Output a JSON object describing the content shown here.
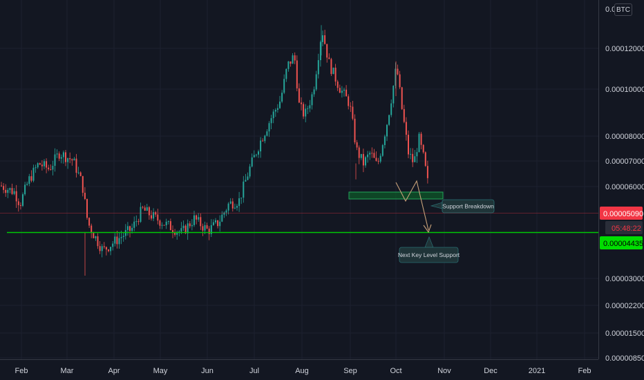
{
  "currency_badge": "BTC",
  "chart_data": {
    "type": "candlestick",
    "y_scale": "log",
    "ylim": [
      8.5e-06,
      0.000142
    ],
    "y_ticks": [
      "0.00012000",
      "0.00010000",
      "0.00008000",
      "0.00007000",
      "0.00006000",
      "0.00003000",
      "0.00002200",
      "0.00001500",
      "0.00000850"
    ],
    "x_ticks": [
      "Feb",
      "Mar",
      "Apr",
      "May",
      "Jun",
      "Jul",
      "Aug",
      "Sep",
      "Oct",
      "Nov",
      "Dec",
      "2021",
      "Feb"
    ],
    "top_partial_tick": "0.0",
    "series": [
      {
        "kind": "trend",
        "points": [
          [
            "Feb",
            5.15e-05,
            5.65e-05,
            4.8e-05,
            5.3e-05
          ],
          [
            "Mar",
            5.4e-05,
            6.4e-05,
            4.7e-05,
            4.1e-05
          ],
          [
            "Apr",
            3.95e-05,
            4.5e-05,
            3e-05,
            4.3e-05
          ],
          [
            "May",
            4.4e-05,
            5e-05,
            3.55e-05,
            4.2e-05
          ],
          [
            "Jun",
            4.1e-05,
            5.25e-05,
            3.75e-05,
            4.65e-05
          ],
          [
            "Jul",
            5.2e-05,
            8.8e-05,
            4.7e-05,
            8.5e-05
          ],
          [
            "Aug",
            9.9e-05,
            0.000142,
            7.5e-05,
            0.000105
          ],
          [
            "Sep",
            8.7e-05,
            9.6e-05,
            5.45e-05,
            5.7e-05
          ],
          [
            "Oct",
            8e-05,
            0.000111,
            5.6e-05,
            6.9e-05
          ],
          [
            "Nov",
            6.2e-05,
            6.9e-05,
            4.8e-05,
            5.09e-05
          ]
        ]
      }
    ],
    "current_price": "0.00005090",
    "countdown": "05:48:22",
    "support_level": "0.00004435",
    "annotations": {
      "breakdown": "Support Breakdown",
      "next_support": "Next Key Level Support"
    },
    "colors": {
      "up": "#26a69a",
      "down": "#ef5350",
      "support_line": "#00c805",
      "price_tag": "#f23645",
      "support_tag": "#00dd00",
      "projection": "#c9a27a",
      "support_zone": "#0b6e2a",
      "background": "#131722"
    }
  }
}
